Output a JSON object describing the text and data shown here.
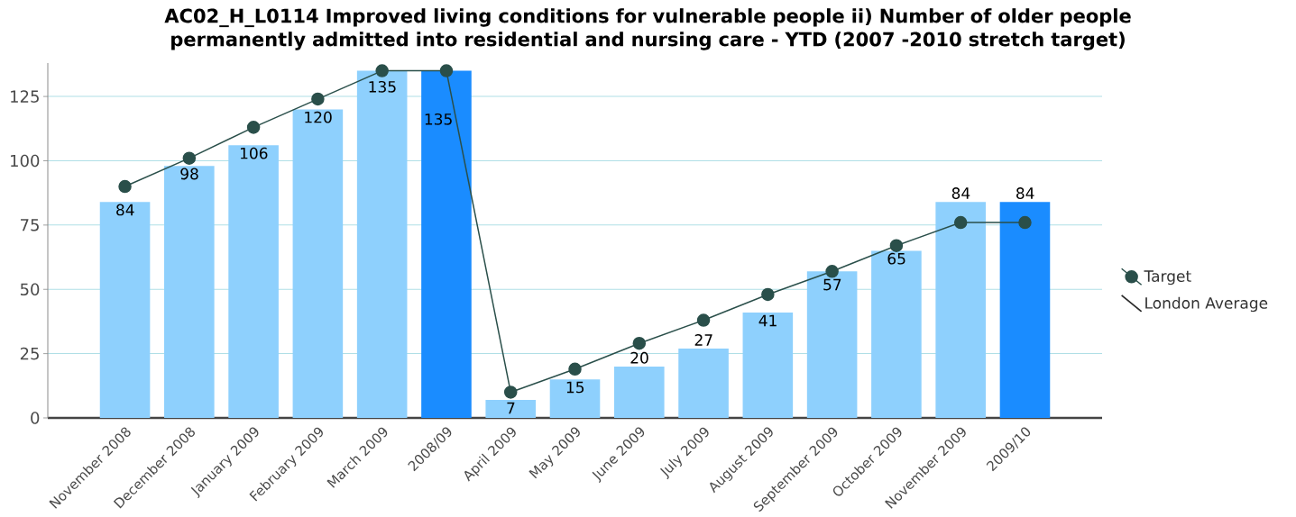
{
  "chart_data": {
    "type": "bar",
    "title": "AC02_H_L0114 Improved living conditions for vulnerable people ii) Number of older people permanently admitted into residential and nursing care - YTD (2007 -2010 stretch target)",
    "categories": [
      "November 2008",
      "December 2008",
      "January 2009",
      "February 2009",
      "March 2009",
      "2008/09",
      "April 2009",
      "May 2009",
      "June 2009",
      "July 2009",
      "August 2009",
      "September 2009",
      "October 2009",
      "November 2009",
      "2009/10"
    ],
    "series": [
      {
        "colors": [
          "#8ed0fd",
          "#8ed0fd",
          "#8ed0fd",
          "#8ed0fd",
          "#8ed0fd",
          "#1a8cff",
          "#8ed0fd",
          "#8ed0fd",
          "#8ed0fd",
          "#8ed0fd",
          "#8ed0fd",
          "#8ed0fd",
          "#8ed0fd",
          "#8ed0fd",
          "#1a8cff"
        ],
        "values": [
          84,
          98,
          106,
          120,
          135,
          135,
          7,
          15,
          20,
          27,
          41,
          57,
          65,
          84,
          84
        ],
        "value_labels": [
          "84",
          "98",
          "106",
          "120",
          "135",
          "135",
          "7",
          "15",
          "20",
          "27",
          "41",
          "57",
          "65",
          "84",
          "84"
        ]
      },
      {
        "type": "line",
        "name": "Target",
        "color": "#2a4f4a",
        "marker": "circle",
        "values": [
          90,
          101,
          113,
          124,
          135,
          135,
          10,
          19,
          29,
          38,
          48,
          57,
          67,
          76,
          76
        ]
      },
      {
        "type": "line",
        "name": "London Average",
        "color": "#2b2b2b",
        "marker": "none",
        "values": [
          null,
          null,
          null,
          null,
          null,
          null,
          null,
          null,
          null,
          null,
          null,
          null,
          null,
          null,
          null
        ]
      }
    ],
    "ylim": [
      0,
      138
    ],
    "yticks": [
      0,
      25,
      50,
      75,
      100,
      125
    ],
    "grid": "y",
    "legend": "right"
  }
}
